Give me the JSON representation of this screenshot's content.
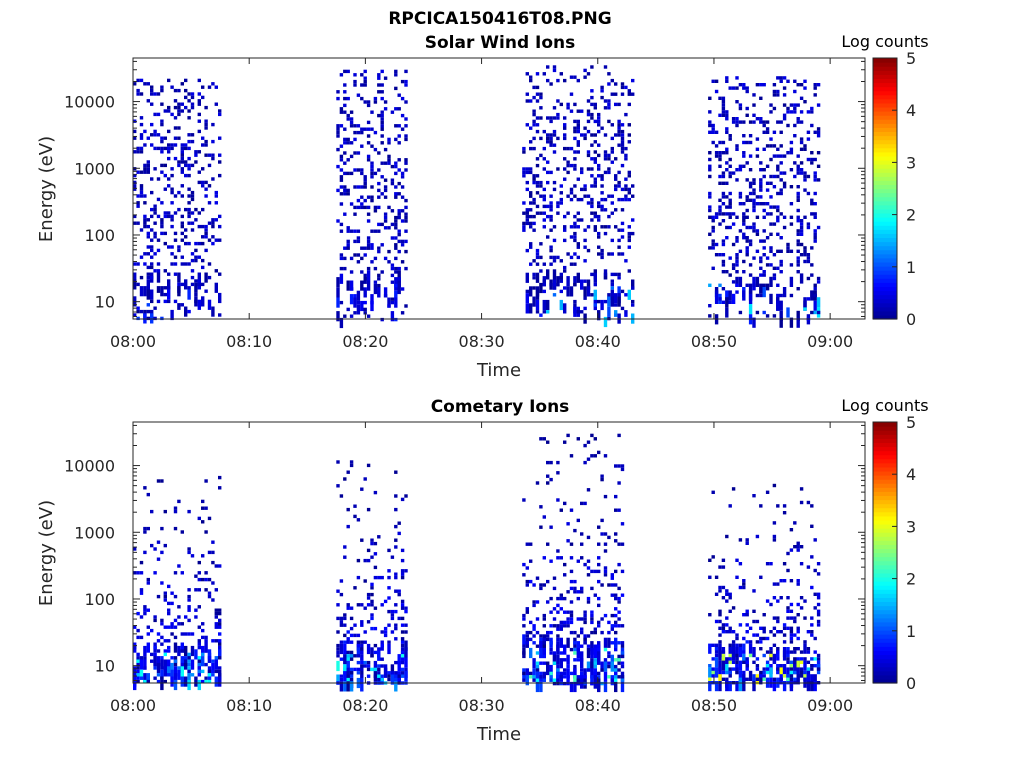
{
  "figure": {
    "title": "RPCICA150416T08.PNG"
  },
  "colorbar": {
    "colors": [
      "#00008f",
      "#0000ff",
      "#0080ff",
      "#00ffff",
      "#80ff80",
      "#ffff00",
      "#ff8000",
      "#ff0000",
      "#800000"
    ]
  },
  "chart_data": [
    {
      "type": "heatmap",
      "title": "Solar Wind Ions",
      "xlabel": "Time",
      "ylabel": "Energy (eV)",
      "yscale": "log",
      "xlim": [
        "08:00",
        "09:03"
      ],
      "ylim": [
        5.5,
        45000
      ],
      "x_tick_labels": [
        "08:00",
        "08:10",
        "08:20",
        "08:30",
        "08:40",
        "08:50",
        "09:00"
      ],
      "y_tick_labels": [
        "10",
        "100",
        "1000",
        "10000"
      ],
      "colorbar": {
        "label": "Log counts",
        "range": [
          0,
          5
        ],
        "tick_labels": [
          "0",
          "1",
          "2",
          "3",
          "4",
          "5"
        ]
      },
      "bursts": [
        {
          "start": "08:00",
          "end": "08:07.5",
          "emin": 6,
          "emax": 22000,
          "peak_log_counts": 1.0
        },
        {
          "start": "08:17.5",
          "end": "08:23.5",
          "emin": 9,
          "emax": 30000,
          "peak_log_counts": 0.8
        },
        {
          "start": "08:33.5",
          "end": "08:43",
          "emin": 6,
          "emax": 35000,
          "peak_log_counts": 1.7
        },
        {
          "start": "08:49.5",
          "end": "08:59",
          "emin": 6,
          "emax": 24000,
          "peak_log_counts": 1.8
        }
      ]
    },
    {
      "type": "heatmap",
      "title": "Cometary Ions",
      "xlabel": "Time",
      "ylabel": "Energy (eV)",
      "yscale": "log",
      "xlim": [
        "08:00",
        "09:03"
      ],
      "ylim": [
        5.5,
        45000
      ],
      "x_tick_labels": [
        "08:00",
        "08:10",
        "08:20",
        "08:30",
        "08:40",
        "08:50",
        "09:00"
      ],
      "y_tick_labels": [
        "10",
        "100",
        "1000",
        "10000"
      ],
      "colorbar": {
        "label": "Log counts",
        "range": [
          0,
          5
        ],
        "tick_labels": [
          "0",
          "1",
          "2",
          "3",
          "4",
          "5"
        ]
      },
      "bursts": [
        {
          "start": "08:00",
          "end": "08:07.5",
          "emin": 6,
          "emax": 7000,
          "peak_log_counts": 2.0
        },
        {
          "start": "08:17.5",
          "end": "08:23.5",
          "emin": 6,
          "emax": 12000,
          "peak_log_counts": 2.0
        },
        {
          "start": "08:33.5",
          "end": "08:42",
          "emin": 6,
          "emax": 30000,
          "peak_log_counts": 2.3
        },
        {
          "start": "08:49.5",
          "end": "08:59",
          "emin": 6,
          "emax": 6000,
          "peak_log_counts": 3.2
        }
      ]
    }
  ]
}
